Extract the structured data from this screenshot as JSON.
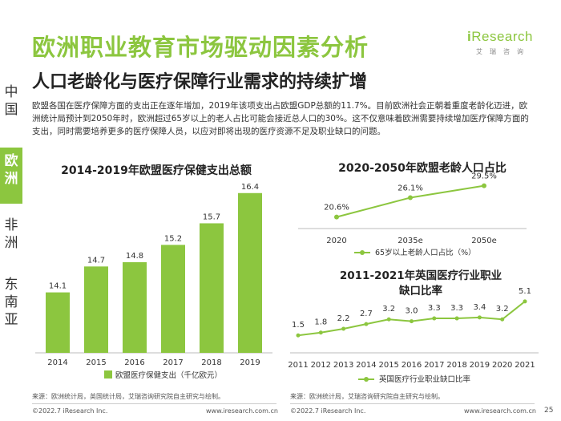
{
  "header": {
    "title": "欧洲职业教育市场驱动因素分析",
    "subtitle": "人口老龄化与医疗保障行业需求的持续扩增"
  },
  "logo": {
    "brand_i": "i",
    "brand_rest": "Research",
    "brand_cn": "艾瑞咨询"
  },
  "sidebar": {
    "items": [
      {
        "label": "中国",
        "active": false
      },
      {
        "label": "欧洲",
        "active": true
      },
      {
        "label": "非洲",
        "active": false
      },
      {
        "label": "东南亚",
        "active": false
      }
    ]
  },
  "description": "欧盟各国在医疗保障方面的支出正在逐年增加，2019年该项支出占欧盟GDP总额的11.7%。目前欧洲社会正朝着重度老龄化迈进，欧洲统计局预计到2050年时，欧洲超过65岁以上的老人占比可能会接近总人口的30%。这不仅意味着欧洲需要持续增加医疗保障方面的支出，同时需要培养更多的医疗保障人员，以应对即将出现的医疗资源不足及职业缺口的问题。",
  "chart_data": [
    {
      "type": "bar",
      "title": "2014-2019年欧盟医疗保健支出总额",
      "categories": [
        "2014",
        "2015",
        "2016",
        "2017",
        "2018",
        "2019"
      ],
      "series": [
        {
          "name": "欧盟医疗保健支出（千亿欧元）",
          "values": [
            14.1,
            14.7,
            14.8,
            15.2,
            15.7,
            16.4
          ]
        }
      ],
      "ylim": [
        12.7,
        16.6
      ],
      "color": "#8cc63f"
    },
    {
      "type": "line",
      "title": "2020-2050年欧盟老龄人口占比",
      "categories": [
        "2020",
        "2035e",
        "2050e"
      ],
      "series": [
        {
          "name": "65岁以上老龄人口占比（%）",
          "values": [
            20.6,
            26.1,
            29.5
          ],
          "labels": [
            "20.6%",
            "26.1%",
            "29.5%"
          ]
        }
      ],
      "ylim": [
        18,
        31
      ],
      "color": "#8cc63f"
    },
    {
      "type": "line",
      "title": "2011-2021年英国医疗行业职业缺口比率",
      "categories": [
        "2011",
        "2012",
        "2013",
        "2014",
        "2015",
        "2016",
        "2017",
        "2018",
        "2019",
        "2020",
        "2021"
      ],
      "series": [
        {
          "name": "英国医疗行业职业缺口比率",
          "values": [
            1.5,
            1.8,
            2.2,
            2.7,
            3.2,
            3.0,
            3.3,
            3.3,
            3.4,
            3.2,
            5.1
          ]
        }
      ],
      "ylim": [
        0.5,
        5.6
      ],
      "color": "#8cc63f"
    }
  ],
  "sources": {
    "left": "来源：欧洲统计局，英国统计局，艾瑞咨询研究院自主研究与绘制。",
    "right": "来源：欧洲统计局，艾瑞咨询研究院自主研究与绘制。"
  },
  "footer": {
    "copyright_left": "©2022.7 iResearch Inc.",
    "url_left": "www.iresearch.com.cn",
    "copyright_right": "©2022.7 iResearch Inc.",
    "url_right": "www.iresearch.com.cn",
    "page": "25"
  }
}
